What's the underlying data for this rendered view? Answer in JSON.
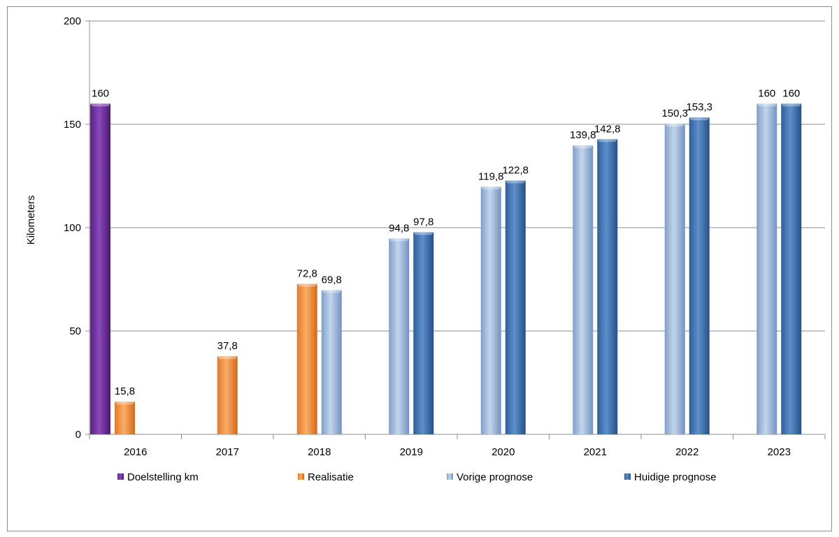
{
  "chart_data": {
    "type": "bar",
    "categories": [
      "2016",
      "2017",
      "2018",
      "2019",
      "2020",
      "2021",
      "2022",
      "2023"
    ],
    "series": [
      {
        "name": "Doelstelling km",
        "color": "#7030a0",
        "values": [
          160,
          null,
          null,
          null,
          null,
          null,
          null,
          null
        ],
        "labels": [
          "160",
          "",
          "",
          "",
          "",
          "",
          "",
          ""
        ]
      },
      {
        "name": "Realisatie",
        "color": "#f79646",
        "values": [
          15.8,
          37.8,
          72.8,
          null,
          null,
          null,
          null,
          null
        ],
        "labels": [
          "15,8",
          "37,8",
          "72,8",
          "",
          "",
          "",
          "",
          ""
        ]
      },
      {
        "name": "Vorige prognose",
        "color": "#95b3d7",
        "values": [
          null,
          null,
          69.8,
          94.8,
          119.8,
          139.8,
          150.3,
          160
        ],
        "labels": [
          "",
          "",
          "69,8",
          "94,8",
          "119,8",
          "139,8",
          "150,3",
          "160"
        ]
      },
      {
        "name": "Huidige prognose",
        "color": "#4f81bd",
        "values": [
          null,
          null,
          null,
          97.8,
          122.8,
          142.8,
          153.3,
          160
        ],
        "labels": [
          "",
          "",
          "",
          "97,8",
          "122,8",
          "142,8",
          "153,3",
          "160"
        ]
      }
    ],
    "title": "",
    "xlabel": "",
    "ylabel": "Kilometers",
    "ylim": [
      0,
      200
    ],
    "yticks": [
      0,
      50,
      100,
      150,
      200
    ],
    "grid": true,
    "legend": "bottom"
  }
}
